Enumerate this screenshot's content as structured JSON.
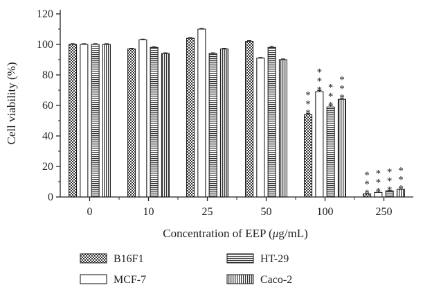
{
  "chart_data": {
    "type": "bar",
    "title": "",
    "xlabel": "Concentration of EEP (μg/mL)",
    "xlabel_parts": {
      "before": "Concentration of EEP (",
      "mu": "μ",
      "after": "g/mL)"
    },
    "ylabel": "Cell viability (%)",
    "ylim": [
      0,
      120
    ],
    "yticks": [
      "0",
      "20",
      "40",
      "60",
      "80",
      "100",
      "120"
    ],
    "categories": [
      "0",
      "10",
      "25",
      "50",
      "100",
      "250"
    ],
    "series": [
      {
        "name": "B16F1",
        "values": [
          100,
          97,
          104,
          102,
          54,
          2
        ],
        "error": [
          0.5,
          0.5,
          0.5,
          0.5,
          0.8,
          0.3
        ],
        "pattern": "checker"
      },
      {
        "name": "MCF-7",
        "values": [
          100,
          103,
          110,
          91,
          69,
          3
        ],
        "error": [
          0.5,
          0.5,
          0.5,
          0.5,
          0.8,
          0.3
        ],
        "pattern": "white"
      },
      {
        "name": "HT-29",
        "values": [
          100,
          98,
          94,
          98,
          59,
          4
        ],
        "error": [
          0.5,
          0.5,
          0.5,
          0.8,
          0.8,
          0.3
        ],
        "pattern": "hlines"
      },
      {
        "name": "Caco-2",
        "values": [
          100,
          94,
          97,
          90,
          64,
          5
        ],
        "error": [
          0.5,
          0.5,
          0.5,
          0.5,
          0.8,
          0.3
        ],
        "pattern": "vlines"
      }
    ],
    "significance": {
      "marker": "*",
      "count": 3,
      "categories": [
        "100",
        "250"
      ]
    },
    "legend_position": "bottom",
    "grid": false
  }
}
